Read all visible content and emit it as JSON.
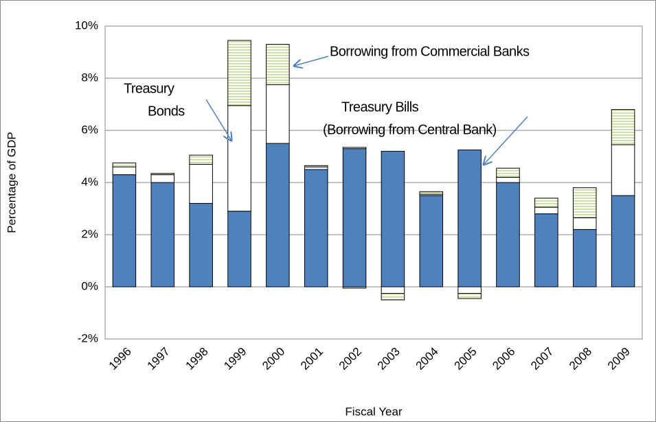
{
  "chart_data": {
    "type": "stacked_bar",
    "x_label": "Fiscal Year",
    "y_label": "Percentage of GDP",
    "categories": [
      "1996",
      "1997",
      "1998",
      "1999",
      "2000",
      "2001",
      "2002",
      "2003",
      "2004",
      "2005",
      "2006",
      "2007",
      "2008",
      "2009"
    ],
    "series": [
      {
        "color": "#4f81bd",
        "values": [
          4.3,
          4.0,
          3.2,
          2.9,
          5.5,
          4.5,
          5.3,
          5.2,
          3.5,
          5.25,
          4.0,
          2.8,
          2.2,
          3.5
        ]
      },
      {
        "color": "#ffffff",
        "values": [
          0.3,
          0.3,
          1.5,
          4.05,
          2.25,
          0.1,
          0.05,
          -0.25,
          0.05,
          -0.25,
          0.2,
          0.25,
          0.45,
          1.95
        ]
      },
      {
        "color": "#c3d69b",
        "pattern": "horizontal-stripes",
        "values": [
          0.15,
          0.05,
          0.35,
          2.5,
          1.55,
          0.05,
          -0.05,
          -0.25,
          0.1,
          -0.2,
          0.35,
          0.35,
          1.15,
          1.35
        ]
      }
    ],
    "annotations": [
      [
        "Borrowing from Commercial Banks"
      ],
      [
        "Treasury",
        "Bonds"
      ],
      [
        "Treasury Bills",
        "(Borrowing from Central Bank)"
      ]
    ],
    "ylim": [
      -2,
      10
    ],
    "yticks": [
      {
        "value": -2,
        "label": "-2%"
      },
      {
        "value": 0,
        "label": "0%"
      },
      {
        "value": 2,
        "label": "2%"
      },
      {
        "value": 4,
        "label": "4%"
      },
      {
        "value": 6,
        "label": "6%"
      },
      {
        "value": 8,
        "label": "8%"
      },
      {
        "value": 10,
        "label": "10%"
      }
    ],
    "grid": true
  }
}
